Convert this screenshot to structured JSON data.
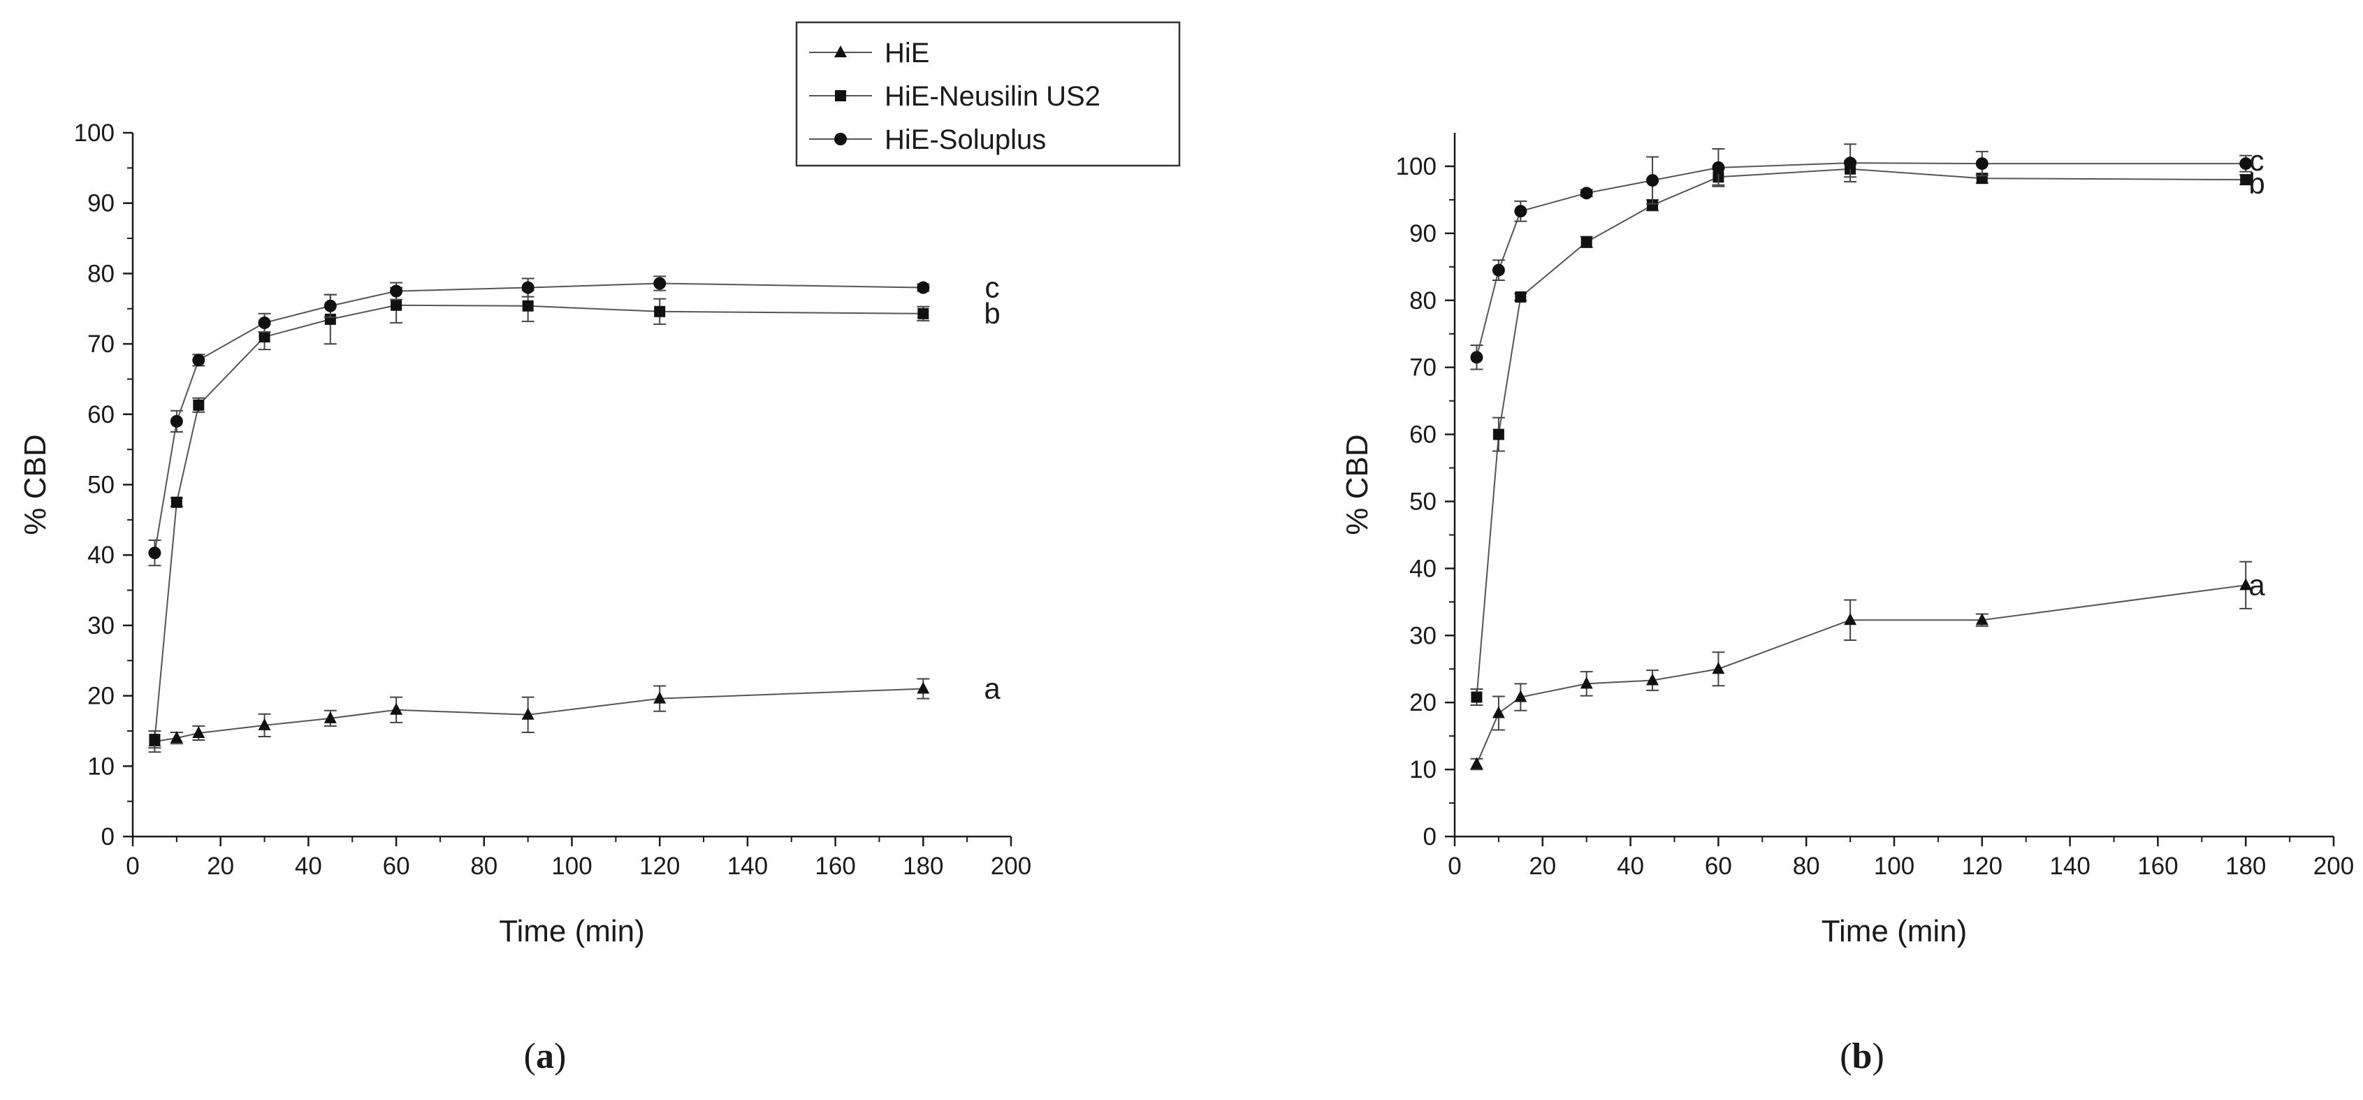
{
  "legend": {
    "entries": [
      {
        "label": "HiE",
        "marker": "triangle"
      },
      {
        "label": "HiE-Neusilin US2",
        "marker": "square"
      },
      {
        "label": "HiE-Soluplus",
        "marker": "circle"
      }
    ]
  },
  "chart_data": [
    {
      "panel": "a",
      "caption_open": "(",
      "caption_letter": "a",
      "caption_close": ")",
      "type": "line",
      "xlabel": "Time (min)",
      "ylabel": "% CBD",
      "xlim": [
        0,
        200
      ],
      "ylim": [
        0,
        100
      ],
      "xticks": [
        0,
        20,
        40,
        60,
        80,
        100,
        120,
        140,
        160,
        180,
        200
      ],
      "yticks": [
        0,
        10,
        20,
        30,
        40,
        50,
        60,
        70,
        80,
        90,
        100
      ],
      "x": [
        5,
        10,
        15,
        30,
        45,
        60,
        90,
        120,
        180
      ],
      "series": [
        {
          "name": "HiE",
          "marker": "triangle",
          "end_label": "a",
          "values": [
            13.5,
            14,
            14.7,
            15.8,
            16.8,
            18,
            17.3,
            19.6,
            21
          ],
          "errors": [
            1.5,
            0.8,
            1.0,
            1.6,
            1.1,
            1.8,
            2.5,
            1.8,
            1.4
          ]
        },
        {
          "name": "HiE-Neusilin US2",
          "marker": "square",
          "end_label": "b",
          "values": [
            13.8,
            47.5,
            61.3,
            71,
            73.5,
            75.5,
            75.4,
            74.6,
            74.3
          ],
          "errors": [
            1.2,
            0.6,
            1.0,
            1.8,
            3.5,
            2.5,
            2.2,
            1.8,
            1.0
          ]
        },
        {
          "name": "HiE-Soluplus",
          "marker": "circle",
          "end_label": "c",
          "values": [
            40.3,
            59,
            67.7,
            73,
            75.4,
            77.5,
            78,
            78.6,
            78
          ],
          "errors": [
            1.8,
            1.5,
            0.8,
            1.3,
            1.6,
            1.2,
            1.3,
            1.0,
            0.5
          ]
        }
      ]
    },
    {
      "panel": "b",
      "caption_open": "(",
      "caption_letter": "b",
      "caption_close": ")",
      "type": "line",
      "xlabel": "Time (min)",
      "ylabel": "% CBD",
      "xlim": [
        0,
        200
      ],
      "ylim": [
        0,
        105
      ],
      "xticks": [
        0,
        20,
        40,
        60,
        80,
        100,
        120,
        140,
        160,
        180,
        200
      ],
      "yticks": [
        0,
        10,
        20,
        30,
        40,
        50,
        60,
        70,
        80,
        90,
        100
      ],
      "x": [
        5,
        10,
        15,
        30,
        45,
        60,
        90,
        120,
        180
      ],
      "series": [
        {
          "name": "HiE",
          "marker": "triangle",
          "end_label": "a",
          "values": [
            10.8,
            18.4,
            20.8,
            22.8,
            23.3,
            25,
            32.3,
            32.3,
            37.5
          ],
          "errors": [
            0.8,
            2.5,
            2.0,
            1.8,
            1.5,
            2.5,
            3.0,
            0.9,
            3.5
          ]
        },
        {
          "name": "HiE-Neusilin US2",
          "marker": "square",
          "end_label": "b",
          "values": [
            20.8,
            60,
            80.5,
            88.7,
            94.2,
            98.4,
            99.6,
            98.2,
            98
          ],
          "errors": [
            1.2,
            2.5,
            0.5,
            0.8,
            0.8,
            1.2,
            1.2,
            0.7,
            0.7
          ]
        },
        {
          "name": "HiE-Soluplus",
          "marker": "circle",
          "end_label": "c",
          "values": [
            71.5,
            84.5,
            93.3,
            96,
            97.9,
            99.8,
            100.5,
            100.4,
            100.4
          ],
          "errors": [
            1.8,
            1.5,
            1.5,
            0.5,
            3.5,
            2.8,
            2.8,
            1.8,
            1.2
          ]
        }
      ]
    }
  ]
}
